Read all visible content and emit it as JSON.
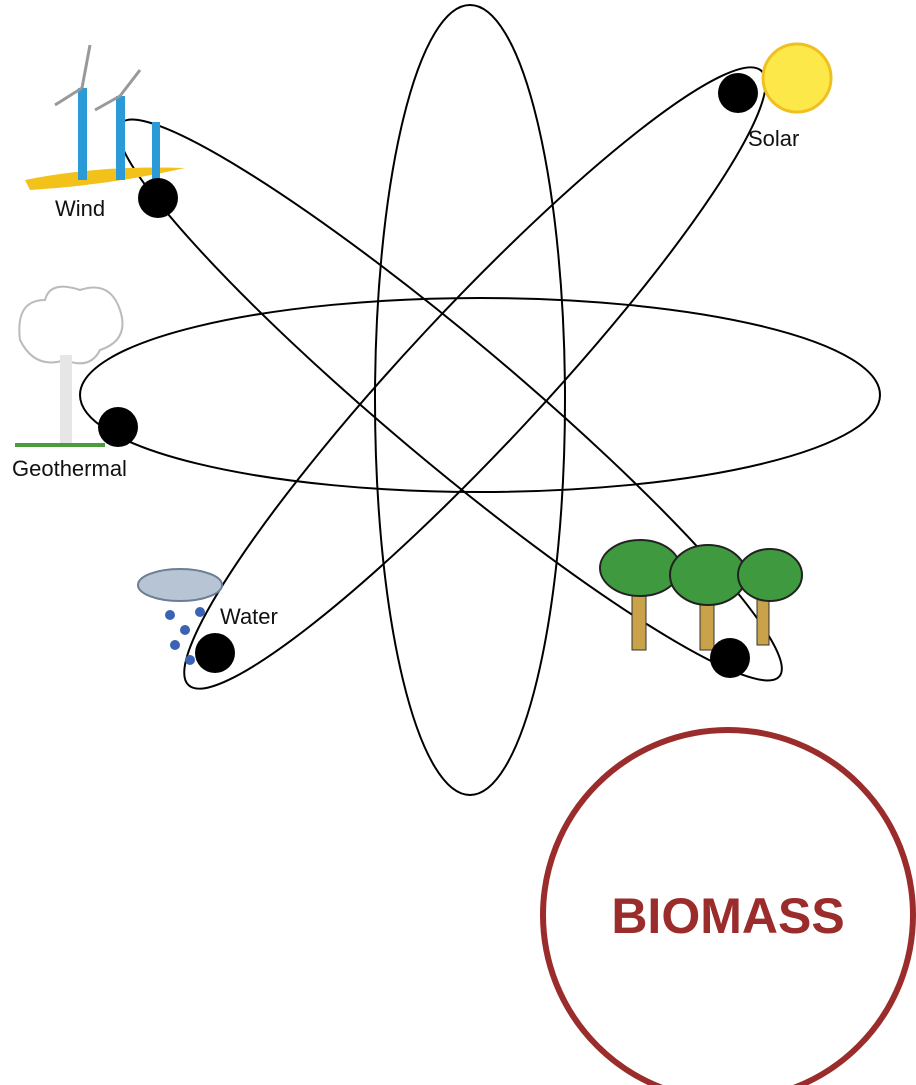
{
  "nodes": [
    {
      "label": "Wind"
    },
    {
      "label": "Solar"
    },
    {
      "label": "Geothermal"
    },
    {
      "label": "Water"
    }
  ],
  "highlight": {
    "label": "BIOMASS"
  }
}
